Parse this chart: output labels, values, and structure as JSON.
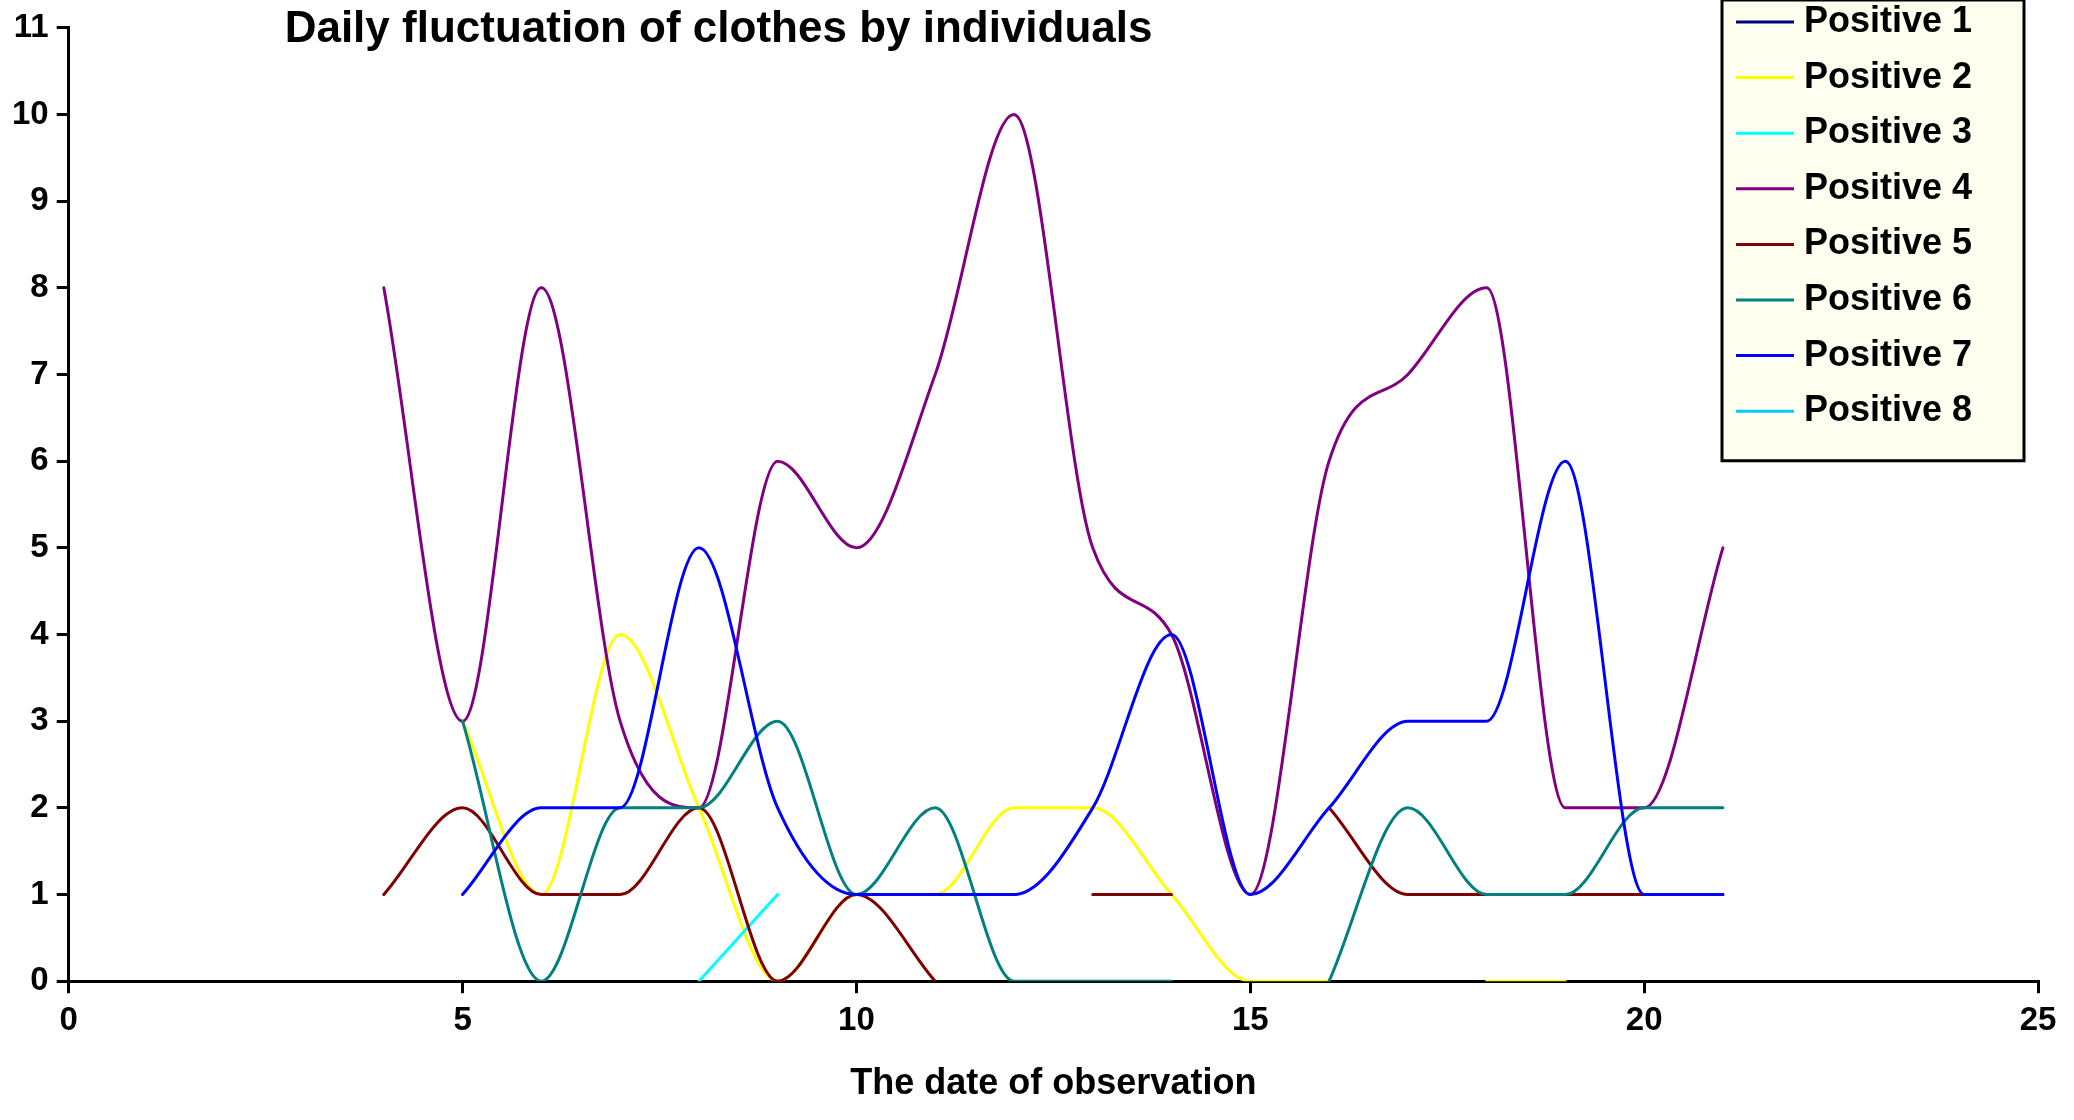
{
  "chart_data": {
    "type": "line",
    "title": "Daily fluctuation of clothes by individuals",
    "xlabel": "The date of observation",
    "x": [
      4,
      5,
      6,
      7,
      8,
      9,
      10,
      11,
      12,
      13,
      14,
      15,
      16,
      17,
      18,
      19,
      20,
      21
    ],
    "series": [
      {
        "name": "Positive 1",
        "color": "#000080",
        "values": [
          null,
          null,
          null,
          null,
          null,
          null,
          null,
          null,
          null,
          null,
          null,
          null,
          null,
          null,
          null,
          null,
          null,
          null
        ]
      },
      {
        "name": "Positive 2",
        "color": "#ffff00",
        "values": [
          null,
          3,
          1,
          4,
          2,
          0,
          1,
          1,
          2,
          2,
          1,
          0,
          0,
          null,
          0,
          0,
          null,
          null
        ]
      },
      {
        "name": "Positive 3",
        "color": "#00ffff",
        "values": [
          null,
          null,
          null,
          null,
          0,
          1,
          null,
          null,
          null,
          null,
          null,
          null,
          null,
          null,
          null,
          null,
          null,
          null
        ]
      },
      {
        "name": "Positive 4",
        "color": "#800080",
        "values": [
          8,
          3,
          8,
          3,
          2,
          6,
          5,
          7,
          10,
          5,
          4,
          1,
          6,
          7,
          8,
          2,
          2,
          5
        ]
      },
      {
        "name": "Positive 5",
        "color": "#800000",
        "values": [
          1,
          2,
          1,
          1,
          2,
          0,
          1,
          0,
          null,
          1,
          1,
          null,
          2,
          1,
          1,
          1,
          1,
          1
        ]
      },
      {
        "name": "Positive 6",
        "color": "#008080",
        "values": [
          null,
          3,
          0,
          2,
          2,
          3,
          1,
          2,
          0,
          0,
          0,
          null,
          0,
          2,
          1,
          1,
          2,
          2
        ]
      },
      {
        "name": "Positive 7",
        "color": "#0000ff",
        "values": [
          null,
          1,
          2,
          2,
          5,
          2,
          1,
          1,
          1,
          2,
          4,
          1,
          2,
          3,
          3,
          6,
          1,
          1
        ]
      },
      {
        "name": "Positive 8",
        "color": "#00ccff",
        "values": [
          null,
          null,
          null,
          null,
          null,
          null,
          null,
          null,
          null,
          null,
          null,
          null,
          null,
          null,
          null,
          null,
          null,
          null
        ]
      }
    ],
    "xlim": [
      0,
      25
    ],
    "xticks": [
      0,
      5,
      10,
      15,
      20,
      25
    ],
    "ylim": [
      0,
      11
    ],
    "yticks": [
      0,
      1,
      2,
      3,
      4,
      5,
      6,
      7,
      8,
      9,
      10,
      11
    ],
    "grid": false,
    "legend": "top right",
    "marker": "none",
    "line_style": "solid"
  }
}
